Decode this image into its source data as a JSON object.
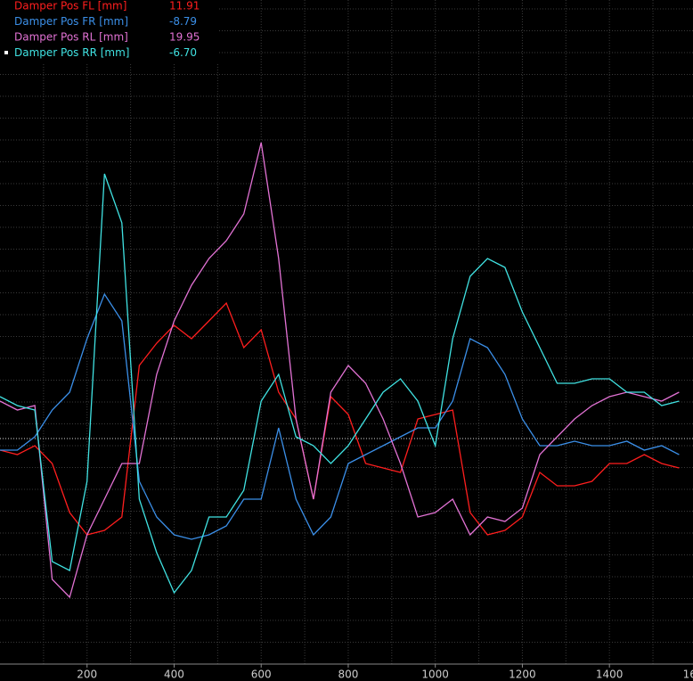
{
  "chart_data": {
    "type": "line",
    "x": [
      0,
      40,
      80,
      120,
      160,
      200,
      240,
      280,
      320,
      360,
      400,
      440,
      480,
      520,
      560,
      600,
      640,
      680,
      720,
      760,
      800,
      840,
      880,
      920,
      960,
      1000,
      1040,
      1080,
      1120,
      1160,
      1200,
      1240,
      1280,
      1320,
      1360,
      1400,
      1440,
      1480,
      1520,
      1560
    ],
    "xlim": [
      0,
      1592
    ],
    "xticks": [
      200,
      400,
      600,
      800,
      1000,
      1200,
      1400,
      1600
    ],
    "ylim": [
      -25.3,
      49.2
    ],
    "grid": true,
    "series": [
      {
        "name": "Damper Pos FL [mm]",
        "value_label": "11.91",
        "color": "#ff1e1e",
        "values": [
          -1.3,
          -1.8,
          -0.8,
          -2.8,
          -8.3,
          -10.8,
          -10.3,
          -8.8,
          8.2,
          10.7,
          12.7,
          11.2,
          13.2,
          15.2,
          10.2,
          12.2,
          5.2,
          2.2,
          -6.8,
          4.7,
          2.7,
          -2.8,
          -3.3,
          -3.8,
          2.2,
          2.7,
          3.2,
          -8.3,
          -10.8,
          -10.3,
          -8.8,
          -3.8,
          -5.3,
          -5.3,
          -4.8,
          -2.8,
          -2.8,
          -1.8,
          -2.8,
          -3.3
        ]
      },
      {
        "name": "Damper Pos FR [mm]",
        "value_label": "-8.79",
        "color": "#3b8fe8",
        "values": [
          -1.3,
          -1.3,
          0.2,
          3.2,
          5.2,
          11.2,
          16.2,
          13.2,
          -4.8,
          -8.8,
          -10.8,
          -11.3,
          -10.8,
          -9.8,
          -6.8,
          -6.8,
          1.2,
          -6.8,
          -10.8,
          -8.8,
          -2.8,
          -1.8,
          -0.8,
          0.2,
          1.2,
          1.2,
          4.2,
          11.2,
          10.2,
          7.2,
          2.2,
          -0.8,
          -0.8,
          -0.3,
          -0.8,
          -0.8,
          -0.3,
          -1.3,
          -0.8,
          -1.8
        ]
      },
      {
        "name": "Damper Pos RL [mm]",
        "value_label": "19.95",
        "color": "#e272d4",
        "values": [
          4.2,
          3.2,
          3.7,
          -15.8,
          -17.8,
          -10.8,
          -6.8,
          -2.8,
          -2.8,
          7.2,
          13.2,
          17.2,
          20.2,
          22.2,
          25.2,
          33.2,
          20.2,
          2.2,
          -6.8,
          5.2,
          8.2,
          6.2,
          2.2,
          -2.8,
          -8.8,
          -8.3,
          -6.8,
          -10.8,
          -8.8,
          -9.3,
          -7.8,
          -1.8,
          0.2,
          2.2,
          3.7,
          4.7,
          5.2,
          4.7,
          4.2,
          5.2
        ]
      },
      {
        "name": "Damper Pos RR [mm]",
        "value_label": "-6.70",
        "color": "#40e2e2",
        "values": [
          4.7,
          3.7,
          3.2,
          -13.8,
          -14.8,
          -4.8,
          29.7,
          24.2,
          -6.8,
          -12.8,
          -17.3,
          -14.8,
          -8.8,
          -8.8,
          -5.8,
          4.2,
          7.2,
          0.2,
          -0.8,
          -2.8,
          -0.8,
          2.2,
          5.2,
          6.7,
          4.2,
          -0.8,
          11.2,
          18.2,
          20.2,
          19.2,
          14.2,
          10.2,
          6.2,
          6.2,
          6.7,
          6.7,
          5.2,
          5.2,
          3.7,
          4.2
        ]
      }
    ]
  }
}
